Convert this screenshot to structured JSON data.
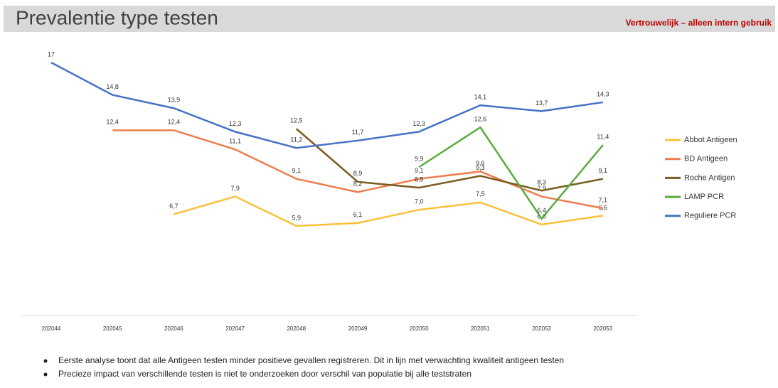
{
  "chart_data": {
    "type": "line",
    "title": "Prevalentie type testen",
    "subtitle": "Vertrouwelijk – alleen intern gebruik",
    "categories": [
      "202044",
      "202045",
      "202046",
      "202047",
      "202048",
      "202049",
      "202050",
      "202051",
      "202052",
      "202053"
    ],
    "series": [
      {
        "name": "Abbot Antigeen",
        "color": "#f9c13a",
        "values": [
          null,
          null,
          6.7,
          7.9,
          5.9,
          6.1,
          7.0,
          7.5,
          6.0,
          6.6
        ],
        "value_labels": [
          null,
          null,
          "6,7",
          "7,9",
          "5,9",
          "6,1",
          "7,0",
          "7,5",
          "6,0",
          "6,6"
        ]
      },
      {
        "name": "BD Antigeen",
        "color": "#ed7d4f",
        "values": [
          null,
          12.4,
          12.4,
          11.1,
          9.1,
          8.2,
          9.1,
          9.6,
          7.9,
          7.1
        ],
        "value_labels": [
          null,
          "12,4",
          "12,4",
          "11,1",
          "9,1",
          "8,2",
          "9,1",
          "9,6",
          "7,9",
          "7,1"
        ]
      },
      {
        "name": "Roche Antigen",
        "color": "#7a5c1e",
        "values": [
          null,
          null,
          null,
          null,
          12.5,
          8.9,
          8.5,
          9.3,
          8.3,
          9.1
        ],
        "value_labels": [
          null,
          null,
          null,
          null,
          "12,5",
          "8,9",
          "8,5",
          "9,3",
          "8,3",
          "9,1"
        ]
      },
      {
        "name": "LAMP PCR",
        "color": "#5aab3e",
        "values": [
          null,
          null,
          null,
          null,
          null,
          null,
          9.9,
          12.6,
          6.4,
          11.4
        ],
        "value_labels": [
          null,
          null,
          null,
          null,
          null,
          null,
          "9,9",
          "12,6",
          "6,4",
          "11,4"
        ]
      },
      {
        "name": "Reguliere PCR",
        "color": "#4472c4",
        "values": [
          17,
          14.8,
          13.9,
          12.3,
          11.2,
          11.7,
          12.3,
          14.1,
          13.7,
          14.3
        ],
        "value_labels": [
          "17",
          "14,8",
          "13,9",
          "12,3",
          "11,2",
          "11,7",
          "12,3",
          "14,1",
          "13,7",
          "14,3"
        ]
      }
    ],
    "annotations": [
      "Eerste analyse toont dat alle Antigeen testen minder positieve gevallen registreren. Dit in lijn met verwachting kwaliteit antigeen testen",
      "Precieze impact van verschillende testen is niet te onderzoeken door verschil van populatie bij alle teststraten"
    ]
  }
}
